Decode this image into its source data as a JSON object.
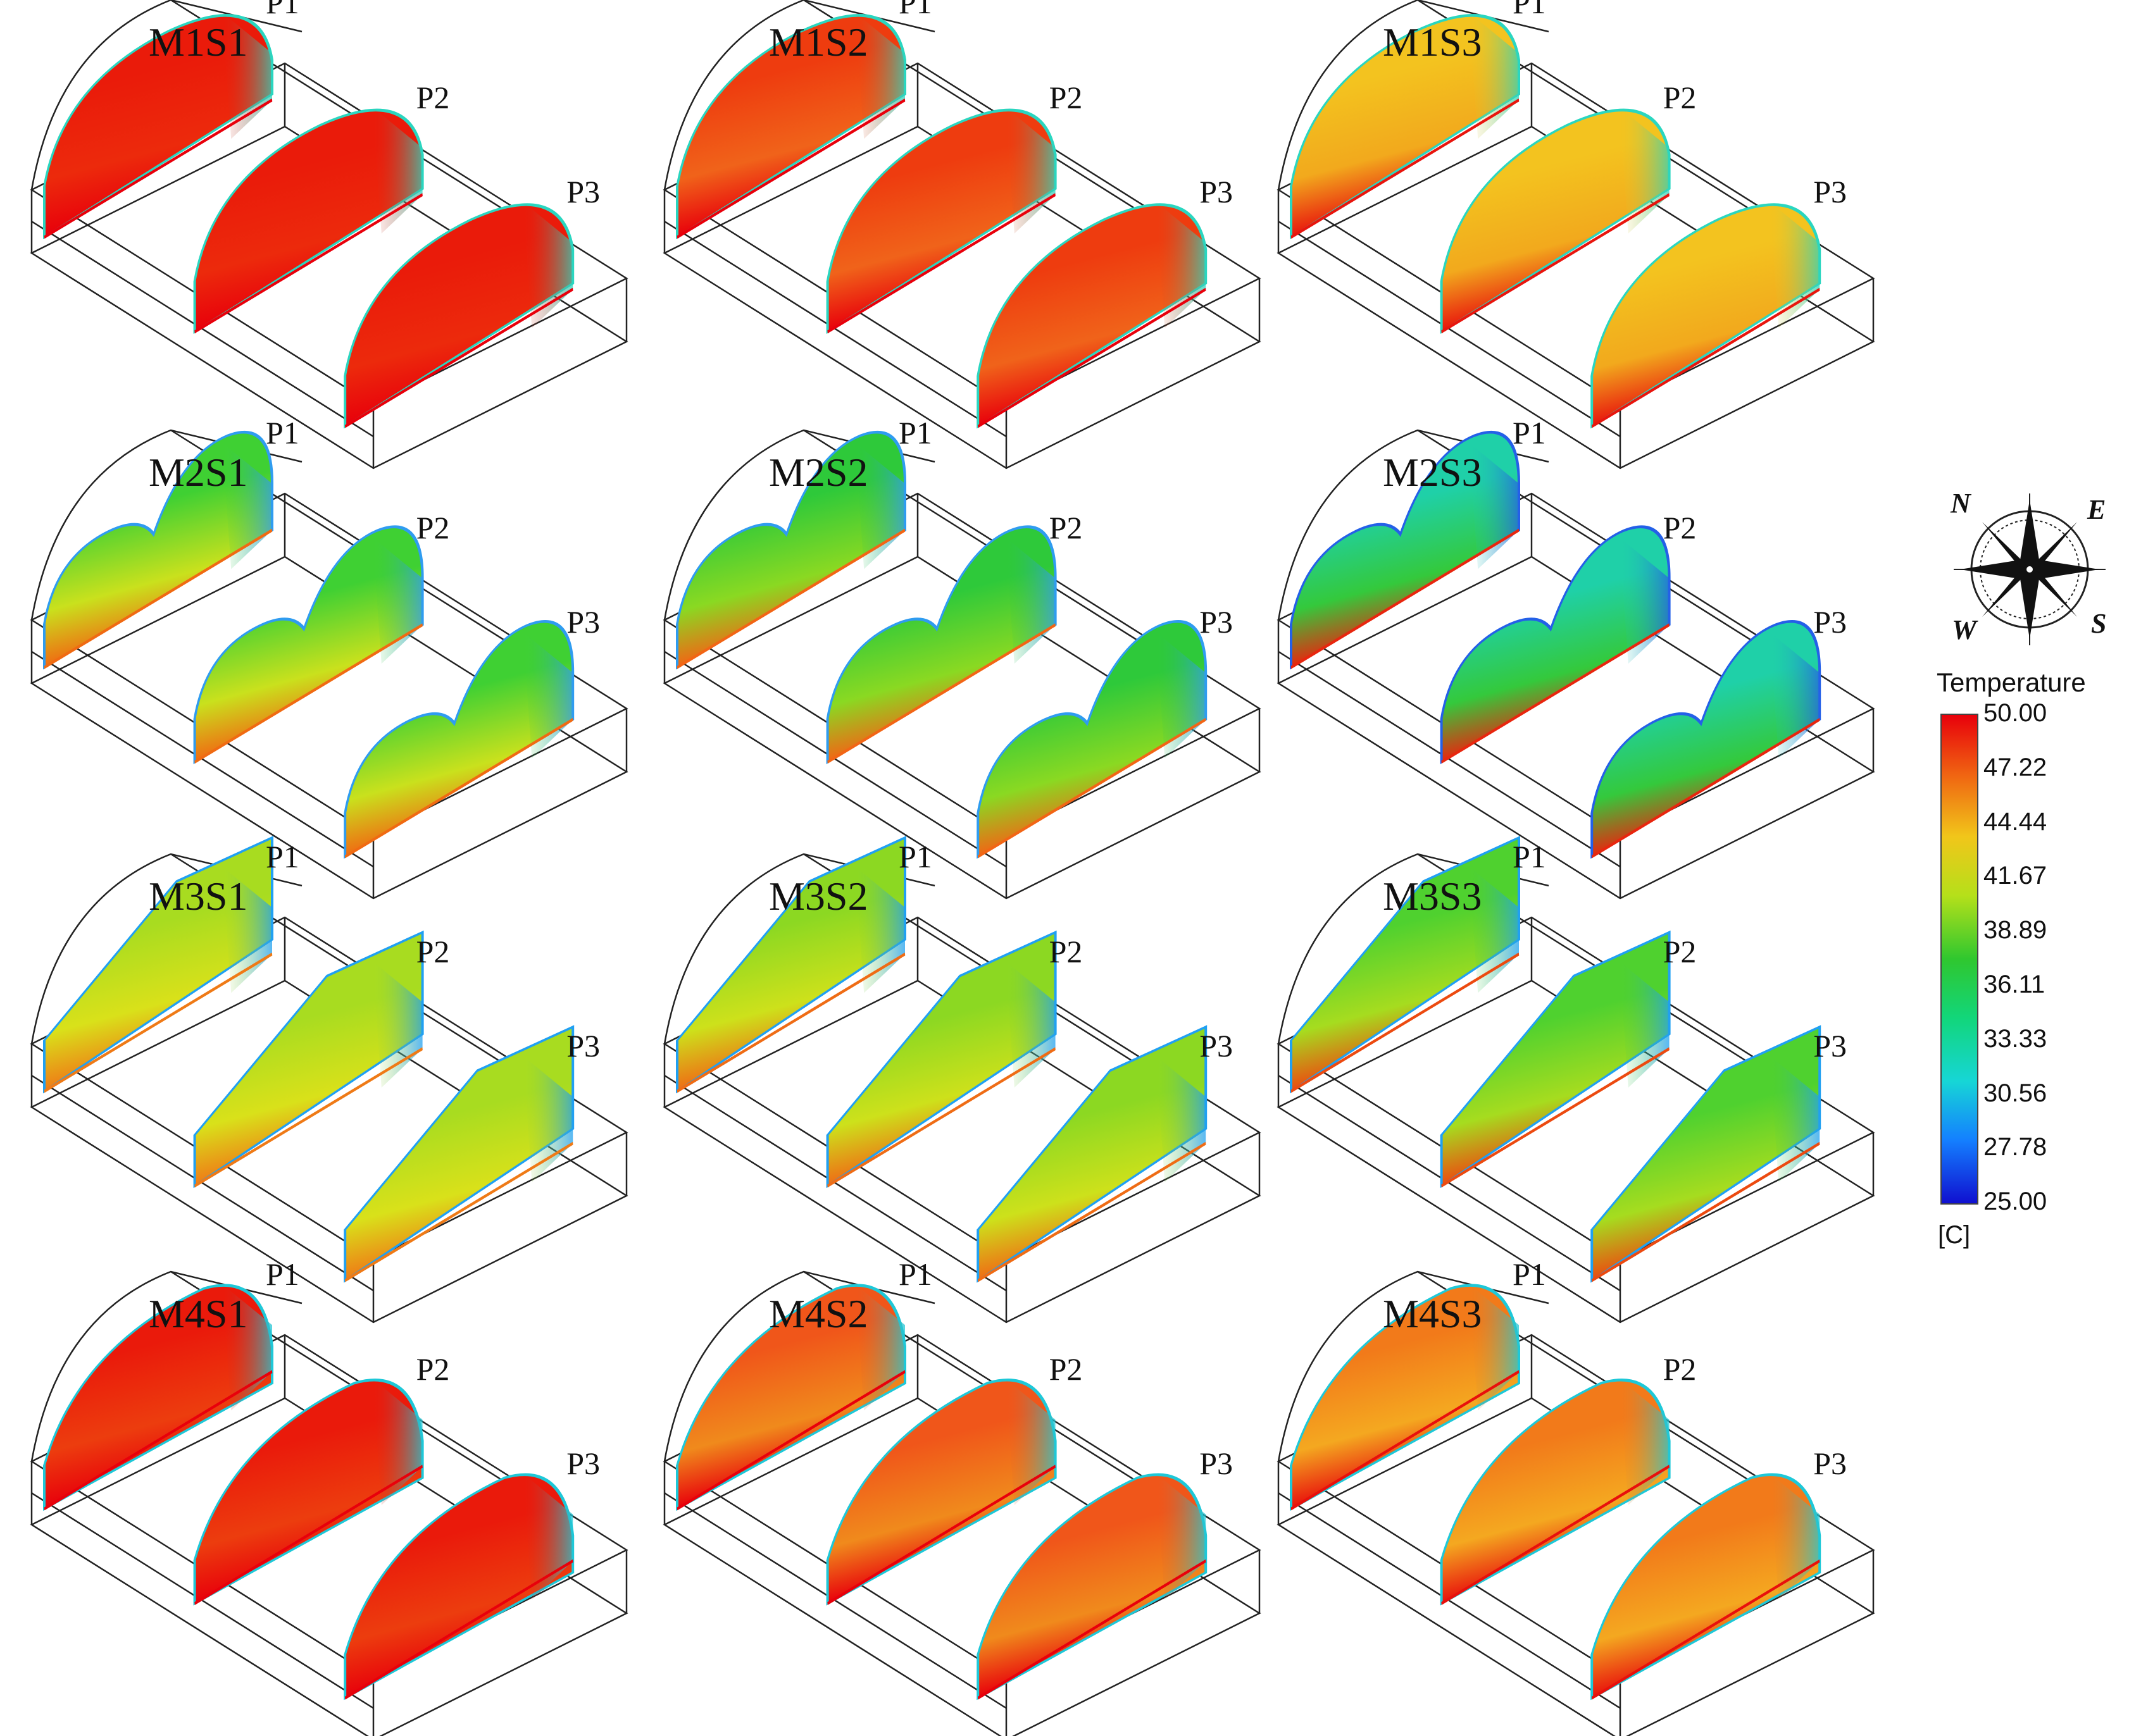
{
  "panels": [
    {
      "title": "M1S1",
      "profile": "arch",
      "colors": {
        "top": "#ea1b0a",
        "mid": "#ec2a0c",
        "base": "#e8000b",
        "edge": "#2ad6c0"
      }
    },
    {
      "title": "M1S2",
      "profile": "arch",
      "colors": {
        "top": "#ee3c0f",
        "mid": "#f0631a",
        "base": "#e8000b",
        "edge": "#2ad6c0"
      }
    },
    {
      "title": "M1S3",
      "profile": "arch",
      "colors": {
        "top": "#f3c31f",
        "mid": "#f2a91d",
        "base": "#e8150d",
        "edge": "#2ad6c0"
      }
    },
    {
      "title": "M2S1",
      "profile": "double",
      "colors": {
        "top": "#3fd033",
        "mid": "#c9e11d",
        "base": "#f06a12",
        "edge": "#2f9cf0"
      }
    },
    {
      "title": "M2S2",
      "profile": "double",
      "colors": {
        "top": "#2ec93a",
        "mid": "#8ad922",
        "base": "#f26515",
        "edge": "#2f9cf0"
      }
    },
    {
      "title": "M2S3",
      "profile": "double",
      "colors": {
        "top": "#1fd0a8",
        "mid": "#34c93c",
        "base": "#e8260e",
        "edge": "#2460e8"
      }
    },
    {
      "title": "M3S1",
      "profile": "shed",
      "colors": {
        "top": "#a8dc20",
        "mid": "#d9e11a",
        "base": "#ef7a16",
        "edge": "#20a0f2"
      }
    },
    {
      "title": "M3S2",
      "profile": "shed",
      "colors": {
        "top": "#8cd822",
        "mid": "#cde11b",
        "base": "#ef6c15",
        "edge": "#20a0f2"
      }
    },
    {
      "title": "M3S3",
      "profile": "shed",
      "colors": {
        "top": "#4fd12f",
        "mid": "#a6dc1f",
        "base": "#ec4a10",
        "edge": "#20a0f2"
      }
    },
    {
      "title": "M4S1",
      "profile": "dome",
      "colors": {
        "top": "#ea1a0b",
        "mid": "#ec3d0e",
        "base": "#e8000b",
        "edge": "#1ec8d8"
      }
    },
    {
      "title": "M4S2",
      "profile": "dome",
      "colors": {
        "top": "#f0561a",
        "mid": "#f08a1c",
        "base": "#e8000b",
        "edge": "#1ec8d8"
      }
    },
    {
      "title": "M4S3",
      "profile": "dome",
      "colors": {
        "top": "#f27a1a",
        "mid": "#f4a820",
        "base": "#e8100c",
        "edge": "#1ec8d8"
      }
    }
  ],
  "plane_labels": [
    "P1",
    "P2",
    "P3"
  ],
  "legend": {
    "title": "Temperature",
    "unit": "[C]",
    "ticks": [
      "50.00",
      "47.22",
      "44.44",
      "41.67",
      "38.89",
      "36.11",
      "33.33",
      "30.56",
      "27.78",
      "25.00"
    ],
    "colors": [
      "#e8000b",
      "#f06a12",
      "#f1c61a",
      "#b5e01a",
      "#2fc72f",
      "#12d67a",
      "#16d6d6",
      "#1480ff",
      "#1010d0"
    ]
  },
  "compass": {
    "n": "N",
    "e": "E",
    "s": "S",
    "w": "W"
  }
}
